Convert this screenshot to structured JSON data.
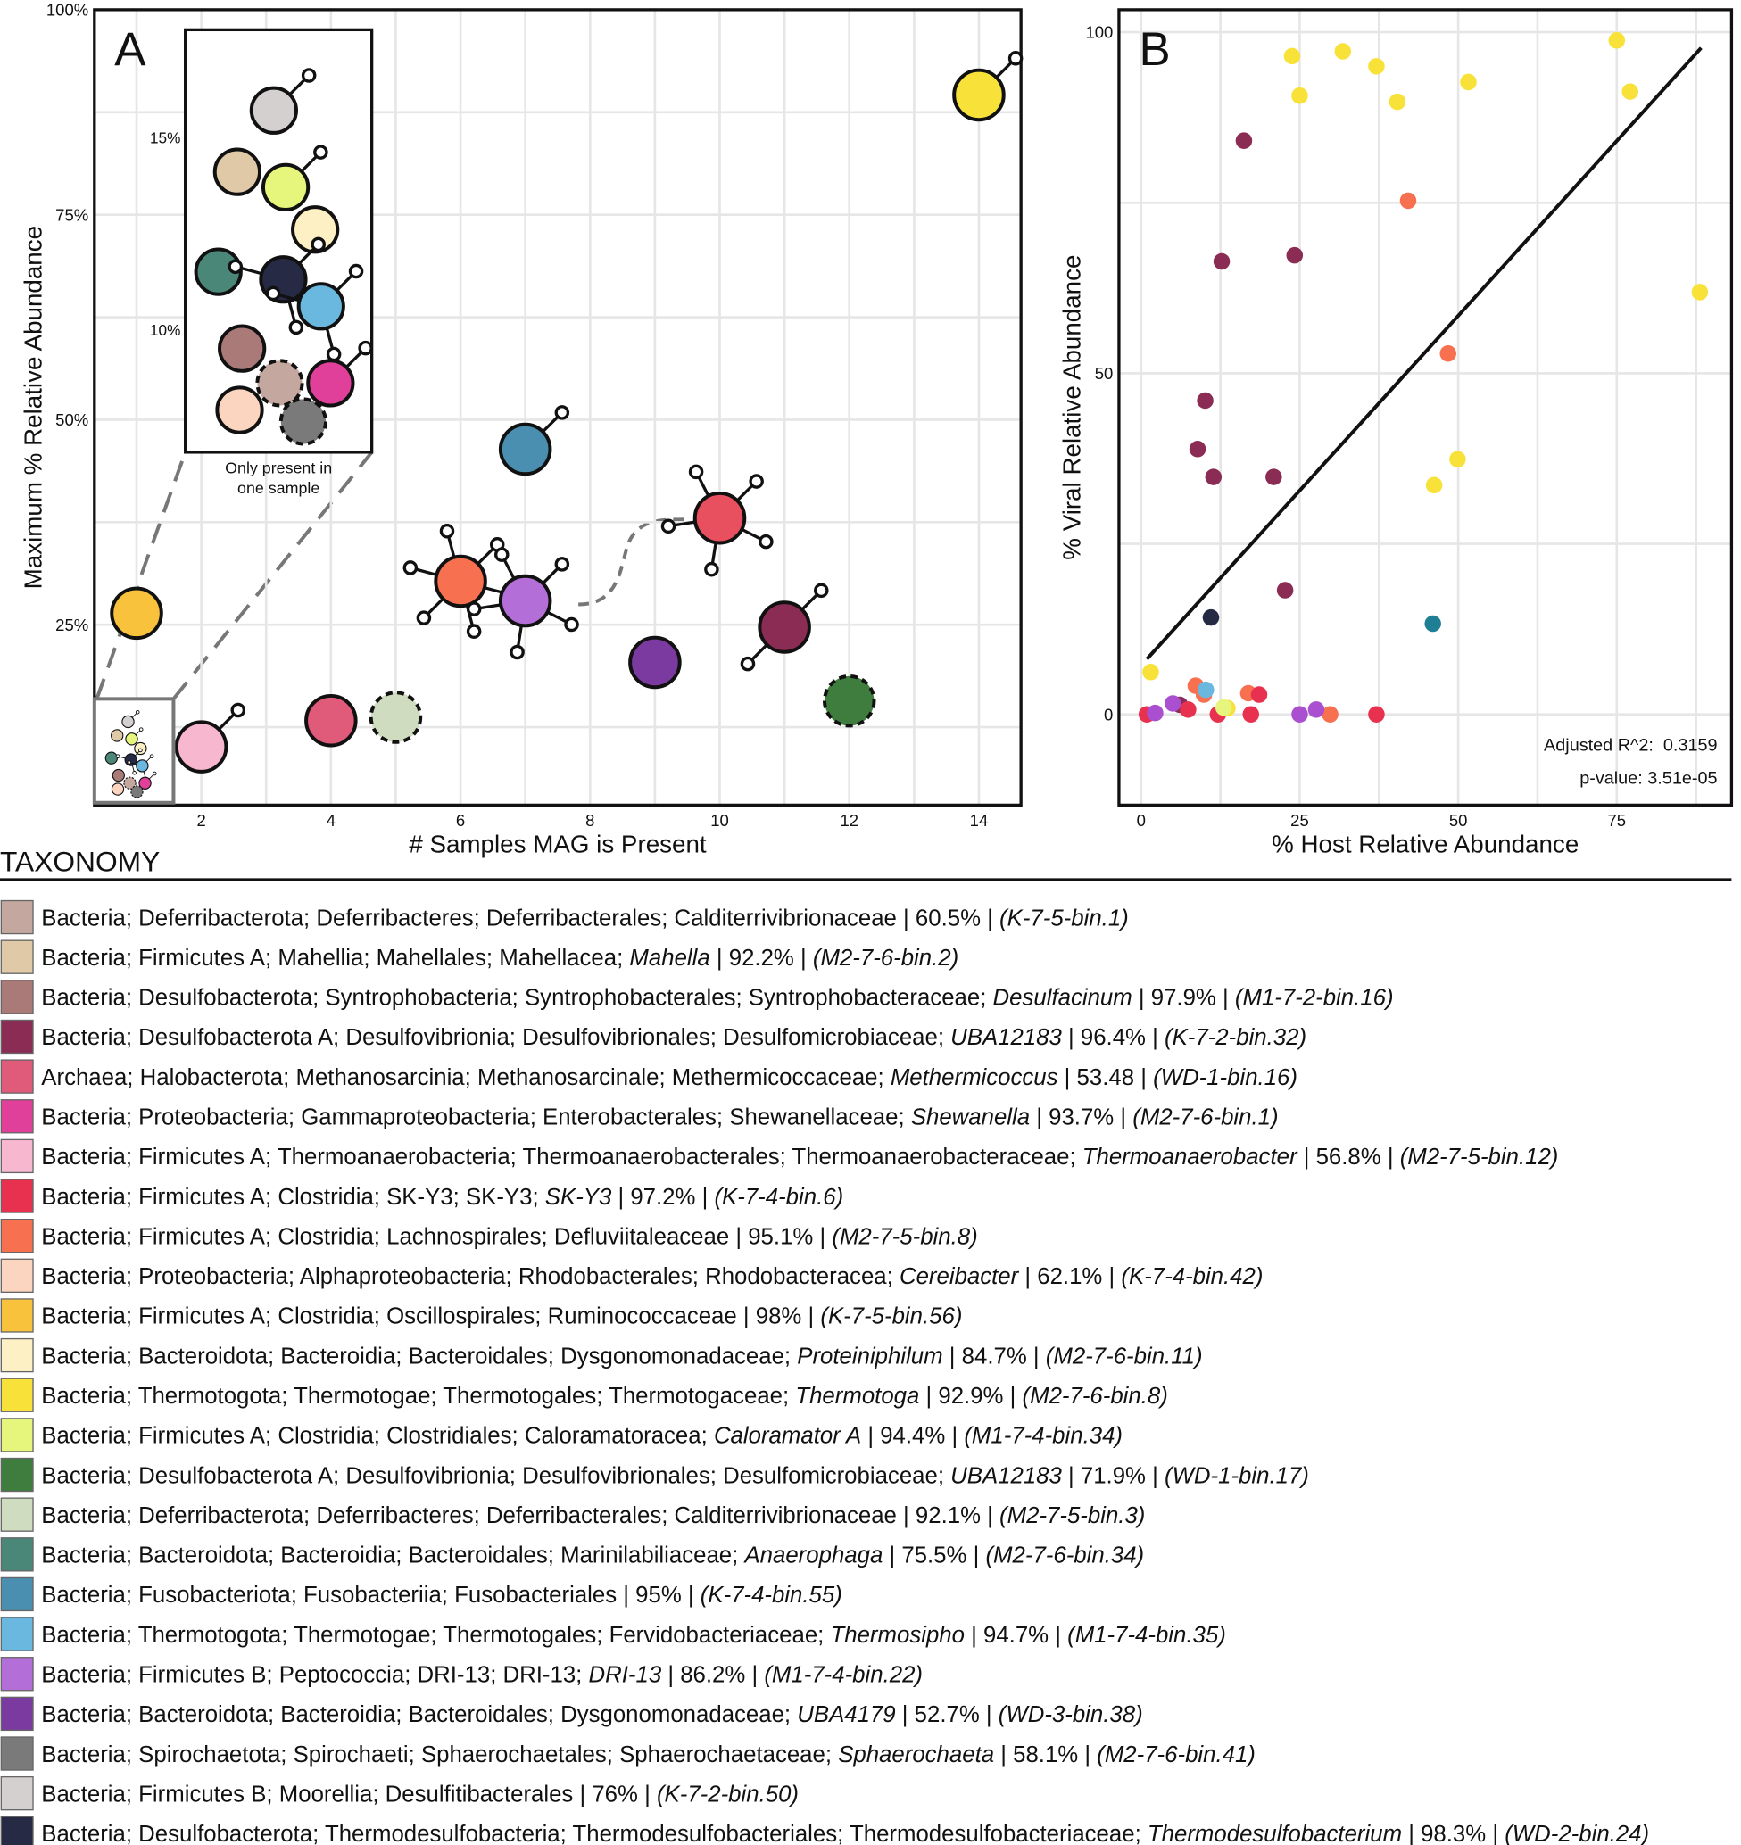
{
  "chart_data": [
    {
      "type": "scatter",
      "panel": "A",
      "xlabel": "# Samples MAG is Present",
      "ylabel": "Maximum % Relative Abundance",
      "xlim": [
        0.35,
        14.65
      ],
      "ylim": [
        3,
        100
      ],
      "xticks": [
        2,
        4,
        6,
        8,
        10,
        12,
        14
      ],
      "yticks": [
        {
          "value": 25,
          "label": "25%"
        },
        {
          "value": 50,
          "label": "50%"
        },
        {
          "value": 75,
          "label": "75%"
        },
        {
          "value": 100,
          "label": "100%"
        }
      ],
      "grid": true,
      "points": [
        {
          "x": 14,
          "y": 89.6,
          "color": "#f8e23a",
          "viruses": 1
        },
        {
          "x": 1,
          "y": 26.4,
          "color": "#f9c23c",
          "viruses": 0
        },
        {
          "x": 2,
          "y": 10.1,
          "color": "#f7b8cf",
          "viruses": 1
        },
        {
          "x": 4,
          "y": 13.3,
          "color": "#e05a7a",
          "viruses": 0
        },
        {
          "x": 5,
          "y": 13.7,
          "color": "#cfdcbf",
          "viruses": 0,
          "dashed": true
        },
        {
          "x": 6,
          "y": 30.3,
          "color": "#f7704f",
          "viruses": 6
        },
        {
          "x": 7,
          "y": 27.9,
          "color": "#b36ed8",
          "viruses": 5
        },
        {
          "x": 7,
          "y": 46.4,
          "color": "#4a8fb0",
          "viruses": 1
        },
        {
          "x": 9,
          "y": 20.4,
          "color": "#7a3aa0",
          "viruses": 0
        },
        {
          "x": 10,
          "y": 38.0,
          "color": "#e8505f",
          "viruses": 5
        },
        {
          "x": 11,
          "y": 24.7,
          "color": "#8b2c55",
          "viruses": 2
        },
        {
          "x": 12,
          "y": 15.7,
          "color": "#3f7d3f",
          "viruses": 0,
          "dashed": true
        }
      ],
      "inset": {
        "ylim": [
          6.8,
          17.8
        ],
        "yticks": [
          {
            "value": 15,
            "label": "15%"
          },
          {
            "value": 10,
            "label": "10%"
          }
        ],
        "caption": [
          "Only present in",
          "one sample"
        ],
        "points": [
          {
            "y": 15.7,
            "color": "#d5d0d0",
            "viruses": 1
          },
          {
            "y": 14.1,
            "color": "#e0c9a6",
            "viruses": 0
          },
          {
            "y": 13.7,
            "color": "#e6f57c",
            "viruses": 1
          },
          {
            "y": 12.6,
            "color": "#fdf0c4",
            "viruses": 0
          },
          {
            "y": 11.5,
            "color": "#4b8778",
            "viruses": 0
          },
          {
            "y": 11.3,
            "color": "#262a45",
            "viruses": 3
          },
          {
            "y": 10.6,
            "color": "#6ab8e0",
            "viruses": 3
          },
          {
            "y": 9.5,
            "color": "#a97a77",
            "viruses": 0
          },
          {
            "y": 8.6,
            "color": "#c4a89f",
            "viruses": 0,
            "dashed": true
          },
          {
            "y": 8.6,
            "color": "#e0409a",
            "viruses": 1
          },
          {
            "y": 7.9,
            "color": "#fcd5c0",
            "viruses": 0
          },
          {
            "y": 7.6,
            "color": "#7a7a7a",
            "viruses": 0,
            "dashed": true
          }
        ]
      }
    },
    {
      "type": "scatter",
      "panel": "B",
      "xlabel": "% Host Relative Abundance",
      "ylabel": "% Viral Relative Abundance",
      "xlim": [
        -3.5,
        93.1
      ],
      "ylim": [
        -13.3,
        103.3
      ],
      "xticks": [
        0,
        25,
        50,
        75
      ],
      "yticks": [
        0,
        50,
        100
      ],
      "grid": true,
      "annotations": [
        "Adjusted R^2:  0.3159",
        "p-value: 3.51e-05"
      ],
      "fit": {
        "x": [
          0.9,
          88.3
        ],
        "y": [
          8.1,
          97.7
        ]
      },
      "series": [
        {
          "color": "#f8e23a",
          "x": [
            23.8,
            31.8,
            37.1,
            25,
            40.4,
            51.6,
            75,
            77.1,
            88.1,
            49.9,
            46.2,
            1.5,
            13.6
          ],
          "y": [
            96.5,
            97.2,
            95.0,
            90.7,
            89.8,
            92.7,
            98.8,
            91.3,
            61.9,
            37.4,
            33.6,
            6.2,
            0.9
          ]
        },
        {
          "color": "#8b2c55",
          "x": [
            16.2,
            12.7,
            24.2,
            10.1,
            8.9,
            11.4,
            20.9,
            22.7,
            6.1
          ],
          "y": [
            84.1,
            66.4,
            67.3,
            46.0,
            38.9,
            34.8,
            34.8,
            18.2,
            1.4
          ]
        },
        {
          "color": "#f7704f",
          "x": [
            42.1,
            48.4,
            8.6,
            16.9,
            9.9,
            29.8
          ],
          "y": [
            75.3,
            52.9,
            4.2,
            3.1,
            2.9,
            0
          ]
        },
        {
          "color": "#e8304f",
          "x": [
            18.6,
            7.4,
            12.1,
            17.3,
            37.1,
            0.9
          ],
          "y": [
            2.9,
            0.7,
            0,
            0,
            0,
            0
          ]
        },
        {
          "color": "#262a45",
          "x": [
            11
          ],
          "y": [
            14.2
          ]
        },
        {
          "color": "#1f7f95",
          "x": [
            46
          ],
          "y": [
            13.3
          ]
        },
        {
          "color": "#6ab8e0",
          "x": [
            10.2
          ],
          "y": [
            3.6
          ]
        },
        {
          "color": "#e6f57c",
          "x": [
            13.0
          ],
          "y": [
            1.0
          ]
        },
        {
          "color": "#a94fd0",
          "x": [
            2.2,
            5,
            27.6,
            25
          ],
          "y": [
            0.2,
            1.6,
            0.7,
            0
          ]
        }
      ]
    }
  ],
  "taxonomy": {
    "title": "TAXONOMY",
    "entries": [
      {
        "color": "#c4a89f",
        "parts": [
          {
            "t": "Bacteria; Deferribacterota; Deferribacteres; Deferribacterales; Calditerrivibrionaceae | 60.5% | "
          },
          {
            "t": "(K-7-5-bin.1)",
            "i": true
          }
        ]
      },
      {
        "color": "#e0c9a6",
        "parts": [
          {
            "t": "Bacteria; Firmicutes A; Mahellia; Mahellales; Mahellacea; "
          },
          {
            "t": "Mahella",
            "i": true
          },
          {
            "t": " | 92.2% | "
          },
          {
            "t": "(M2-7-6-bin.2)",
            "i": true
          }
        ]
      },
      {
        "color": "#a97a77",
        "parts": [
          {
            "t": "Bacteria; Desulfobacterota; Syntrophobacteria; Syntrophobacterales; Syntrophobacteraceae; "
          },
          {
            "t": "Desulfacinum",
            "i": true
          },
          {
            "t": " | 97.9% | "
          },
          {
            "t": "(M1-7-2-bin.16)",
            "i": true
          }
        ]
      },
      {
        "color": "#8b2c55",
        "parts": [
          {
            "t": "Bacteria; Desulfobacterota A; Desulfovibrionia; Desulfovibrionales; Desulfomicrobiaceae; "
          },
          {
            "t": "UBA12183",
            "i": true
          },
          {
            "t": " | 96.4% | "
          },
          {
            "t": "(K-7-2-bin.32)",
            "i": true
          }
        ]
      },
      {
        "color": "#e05a7a",
        "parts": [
          {
            "t": "Archaea; Halobacterota; Methanosarcinia; Methanosarcinale; Methermicoccaceae; "
          },
          {
            "t": "Methermicoccus",
            "i": true
          },
          {
            "t": " | 53.48 | "
          },
          {
            "t": "(WD-1-bin.16)",
            "i": true
          }
        ]
      },
      {
        "color": "#e0409a",
        "parts": [
          {
            "t": "Bacteria; Proteobacteria; Gammaproteobacteria; Enterobacterales; Shewanellaceae; "
          },
          {
            "t": "Shewanella",
            "i": true
          },
          {
            "t": " | 93.7% | "
          },
          {
            "t": "(M2-7-6-bin.1)",
            "i": true
          }
        ]
      },
      {
        "color": "#f7b8cf",
        "parts": [
          {
            "t": "Bacteria; Firmicutes A; Thermoanaerobacteria; Thermoanaerobacterales; Thermoanaerobacteraceae; "
          },
          {
            "t": "Thermoanaerobacter",
            "i": true
          },
          {
            "t": " | 56.8% | "
          },
          {
            "t": "(M2-7-5-bin.12)",
            "i": true
          }
        ]
      },
      {
        "color": "#e8304f",
        "parts": [
          {
            "t": "Bacteria; Firmicutes A; Clostridia; SK-Y3; SK-Y3; "
          },
          {
            "t": "SK-Y3",
            "i": true
          },
          {
            "t": " | 97.2% | "
          },
          {
            "t": "(K-7-4-bin.6)",
            "i": true
          }
        ]
      },
      {
        "color": "#f7704f",
        "parts": [
          {
            "t": "Bacteria; Firmicutes A; Clostridia; Lachnospirales; Defluviitaleaceae | 95.1% | "
          },
          {
            "t": "(M2-7-5-bin.8)",
            "i": true
          }
        ]
      },
      {
        "color": "#fcd5c0",
        "parts": [
          {
            "t": "Bacteria; Proteobacteria; Alphaproteobacteria; Rhodobacterales; Rhodobacteracea; "
          },
          {
            "t": "Cereibacter",
            "i": true
          },
          {
            "t": " | 62.1% | "
          },
          {
            "t": "(K-7-4-bin.42)",
            "i": true
          }
        ]
      },
      {
        "color": "#f9c23c",
        "parts": [
          {
            "t": "Bacteria; Firmicutes A; Clostridia; Oscillospirales; Ruminococcaceae | 98% | "
          },
          {
            "t": "(K-7-5-bin.56)",
            "i": true
          }
        ]
      },
      {
        "color": "#fdf0c4",
        "parts": [
          {
            "t": "Bacteria; Bacteroidota; Bacteroidia; Bacteroidales; Dysgonomonadaceae; "
          },
          {
            "t": "Proteiniphilum",
            "i": true
          },
          {
            "t": " | 84.7% | "
          },
          {
            "t": "(M2-7-6-bin.11)",
            "i": true
          }
        ]
      },
      {
        "color": "#f8e23a",
        "parts": [
          {
            "t": "Bacteria; Thermotogota; Thermotogae; Thermotogales; Thermotogaceae; "
          },
          {
            "t": "Thermotoga",
            "i": true
          },
          {
            "t": " | 92.9% | "
          },
          {
            "t": "(M2-7-6-bin.8)",
            "i": true
          }
        ]
      },
      {
        "color": "#e6f57c",
        "parts": [
          {
            "t": "Bacteria; Firmicutes A; Clostridia; Clostridiales; Caloramatoracea; "
          },
          {
            "t": "Caloramator A",
            "i": true
          },
          {
            "t": " | 94.4% | "
          },
          {
            "t": "(M1-7-4-bin.34)",
            "i": true
          }
        ]
      },
      {
        "color": "#3f7d3f",
        "parts": [
          {
            "t": "Bacteria; Desulfobacterota A; Desulfovibrionia; Desulfovibrionales; Desulfomicrobiaceae; "
          },
          {
            "t": "UBA12183",
            "i": true
          },
          {
            "t": " | 71.9% | "
          },
          {
            "t": "(WD-1-bin.17)",
            "i": true
          }
        ]
      },
      {
        "color": "#cfdcbf",
        "parts": [
          {
            "t": "Bacteria; Deferribacterota; Deferribacteres; Deferribacterales; Calditerrivibrionaceae | 92.1% | "
          },
          {
            "t": "(M2-7-5-bin.3)",
            "i": true
          }
        ]
      },
      {
        "color": "#4b8778",
        "parts": [
          {
            "t": "Bacteria; Bacteroidota; Bacteroidia; Bacteroidales; Marinilabiliaceae; "
          },
          {
            "t": "Anaerophaga",
            "i": true
          },
          {
            "t": " | 75.5% | "
          },
          {
            "t": "(M2-7-6-bin.34)",
            "i": true
          }
        ]
      },
      {
        "color": "#4a8fb0",
        "parts": [
          {
            "t": "Bacteria; Fusobacteriota; Fusobacteriia; Fusobacteriales | 95% | "
          },
          {
            "t": "(K-7-4-bin.55)",
            "i": true
          }
        ]
      },
      {
        "color": "#6ab8e0",
        "parts": [
          {
            "t": "Bacteria; Thermotogota; Thermotogae; Thermotogales; Fervidobacteriaceae; "
          },
          {
            "t": "Thermosipho",
            "i": true
          },
          {
            "t": " | 94.7% | "
          },
          {
            "t": "(M1-7-4-bin.35)",
            "i": true
          }
        ]
      },
      {
        "color": "#b36ed8",
        "parts": [
          {
            "t": "Bacteria; Firmicutes B; Peptococcia; DRI-13; DRI-13; "
          },
          {
            "t": "DRI-13",
            "i": true
          },
          {
            "t": " | 86.2% | "
          },
          {
            "t": "(M1-7-4-bin.22)",
            "i": true
          }
        ]
      },
      {
        "color": "#7a3aa0",
        "parts": [
          {
            "t": "Bacteria; Bacteroidota; Bacteroidia; Bacteroidales; Dysgonomonadaceae; "
          },
          {
            "t": "UBA4179",
            "i": true
          },
          {
            "t": " | 52.7% | "
          },
          {
            "t": "(WD-3-bin.38)",
            "i": true
          }
        ]
      },
      {
        "color": "#7a7a7a",
        "parts": [
          {
            "t": "Bacteria; Spirochaetota; Spirochaeti; Sphaerochaetales; Sphaerochaetaceae; "
          },
          {
            "t": "Sphaerochaeta",
            "i": true
          },
          {
            "t": " | 58.1% | "
          },
          {
            "t": "(M2-7-6-bin.41)",
            "i": true
          }
        ]
      },
      {
        "color": "#d5d0d0",
        "parts": [
          {
            "t": "Bacteria; Firmicutes B; Moorellia; Desulfitibacterales | 76% | "
          },
          {
            "t": "(K-7-2-bin.50)",
            "i": true
          }
        ]
      },
      {
        "color": "#262a45",
        "parts": [
          {
            "t": "Bacteria; Desulfobacterota; Thermodesulfobacteria; Thermodesulfobacteriales; Thermodesulfobacteriaceae; "
          },
          {
            "t": "Thermodesulfobacterium",
            "i": true
          },
          {
            "t": " | 98.3% | "
          },
          {
            "t": "(WD-2-bin.24)",
            "i": true
          }
        ]
      }
    ]
  }
}
